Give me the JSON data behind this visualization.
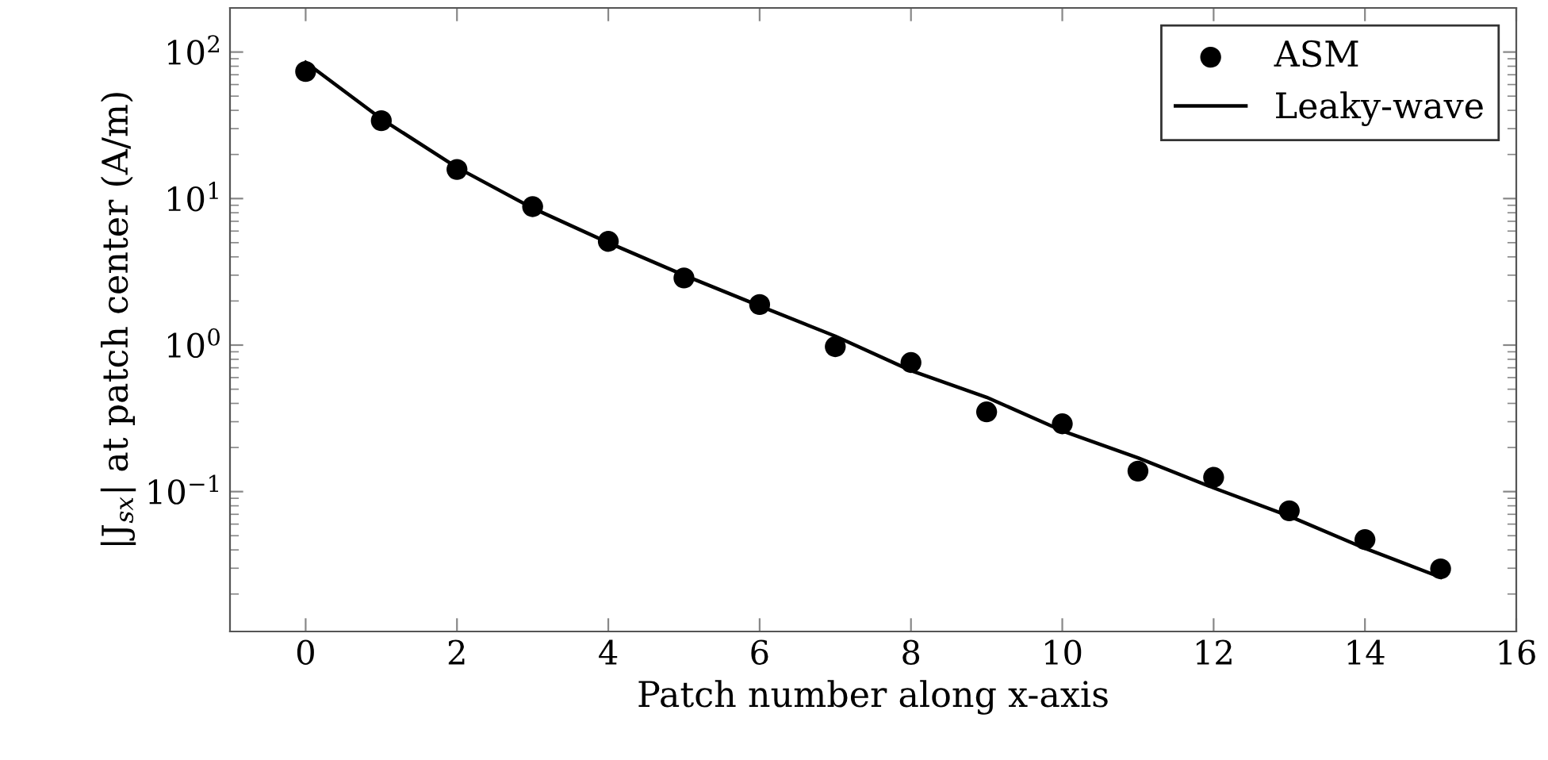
{
  "chart_data": {
    "type": "scatter",
    "xlabel": "Patch number along x-axis",
    "ylabel": "|J$_{sx}$| at patch center (A/m)",
    "log": "y",
    "xlim": [
      -1,
      16
    ],
    "xticks": [
      0,
      2,
      4,
      6,
      8,
      10,
      12,
      14,
      16
    ],
    "ylim": [
      0.0111,
      200
    ],
    "yticks": [
      {
        "value": 0.1,
        "label": "10$^{−1}$"
      },
      {
        "value": 1,
        "label": "10$^{0}$"
      },
      {
        "value": 10,
        "label": "10$^{1}$"
      },
      {
        "value": 100,
        "label": "10$^{2}$"
      }
    ],
    "legend": "top right",
    "grid": false,
    "series": [
      {
        "name": "ASM",
        "marker": "circle",
        "color": "#000000",
        "x": [
          0,
          1,
          2,
          3,
          4,
          5,
          6,
          7,
          8,
          9,
          10,
          11,
          12,
          13,
          14,
          15
        ],
        "values": [
          73.6,
          34,
          15.8,
          8.8,
          5.1,
          2.87,
          1.89,
          0.975,
          0.76,
          0.35,
          0.29,
          0.138,
          0.125,
          0.074,
          0.047,
          0.0297
        ]
      },
      {
        "name": "Leaky-wave",
        "type": "line",
        "line_style": "solid",
        "color": "#000000",
        "x": [
          0,
          1,
          2,
          3,
          4,
          5,
          6,
          7,
          8,
          9,
          10,
          11,
          12,
          13,
          14,
          15
        ],
        "values": [
          85,
          35,
          16.3,
          8.6,
          5.0,
          3.0,
          1.85,
          1.15,
          0.67,
          0.44,
          0.26,
          0.17,
          0.106,
          0.068,
          0.041,
          0.026
        ]
      }
    ]
  }
}
